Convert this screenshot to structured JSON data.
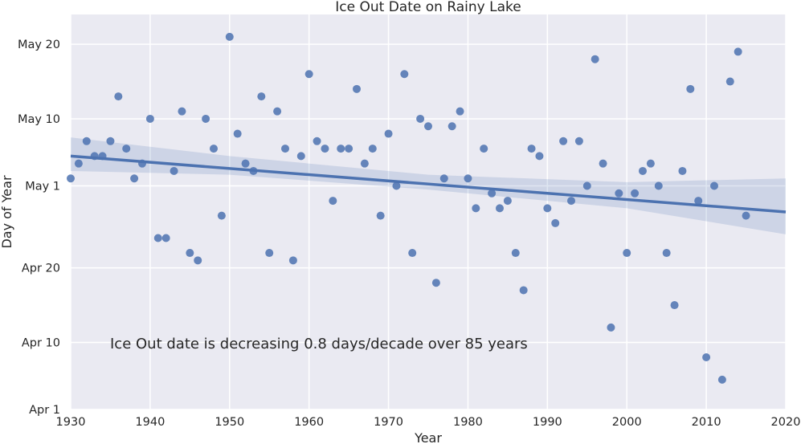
{
  "chart_data": {
    "type": "scatter",
    "title": "Ice Out Date on Rainy Lake",
    "xlabel": "Year",
    "ylabel": "Day of Year",
    "xlim": [
      1930,
      2020
    ],
    "ylim": [
      "Apr 1",
      "May 24"
    ],
    "xticks": [
      1930,
      1940,
      1950,
      1960,
      1970,
      1980,
      1990,
      2000,
      2010,
      2020
    ],
    "yticks": [
      {
        "value": "Apr 1",
        "label": "Apr 1"
      },
      {
        "value": "Apr 10",
        "label": "Apr 10"
      },
      {
        "value": "Apr 20",
        "label": "Apr 20"
      },
      {
        "value": "May 1",
        "label": "May 1"
      },
      {
        "value": "May 10",
        "label": "May 10"
      },
      {
        "value": "May 20",
        "label": "May 20"
      }
    ],
    "grid": true,
    "annotation": "Ice Out date is decreasing 0.8 days/decade over 85 years",
    "trend_line": {
      "start": {
        "x": 1930,
        "y": "May 5"
      },
      "end": {
        "x": 2020,
        "y": "Apr 27.5"
      }
    },
    "confidence_band": [
      {
        "x": 1930,
        "upper": "May 7.5",
        "lower": "May 3"
      },
      {
        "x": 1950,
        "upper": "May 5",
        "lower": "May 2.5"
      },
      {
        "x": 1975,
        "upper": "May 2.5",
        "lower": "Apr 30.5"
      },
      {
        "x": 2000,
        "upper": "May 1.5",
        "lower": "Apr 28"
      },
      {
        "x": 2020,
        "upper": "May 2",
        "lower": "Apr 24.5"
      }
    ],
    "points": [
      {
        "x": 1930,
        "y": "May 2"
      },
      {
        "x": 1931,
        "y": "May 4"
      },
      {
        "x": 1932,
        "y": "May 7"
      },
      {
        "x": 1933,
        "y": "May 5"
      },
      {
        "x": 1934,
        "y": "May 5"
      },
      {
        "x": 1935,
        "y": "May 7"
      },
      {
        "x": 1936,
        "y": "May 13"
      },
      {
        "x": 1937,
        "y": "May 6"
      },
      {
        "x": 1938,
        "y": "May 2"
      },
      {
        "x": 1939,
        "y": "May 4"
      },
      {
        "x": 1940,
        "y": "May 10"
      },
      {
        "x": 1941,
        "y": "Apr 24"
      },
      {
        "x": 1942,
        "y": "Apr 24"
      },
      {
        "x": 1943,
        "y": "May 3"
      },
      {
        "x": 1944,
        "y": "May 11"
      },
      {
        "x": 1945,
        "y": "Apr 22"
      },
      {
        "x": 1946,
        "y": "Apr 21"
      },
      {
        "x": 1947,
        "y": "May 10"
      },
      {
        "x": 1948,
        "y": "May 6"
      },
      {
        "x": 1949,
        "y": "Apr 27"
      },
      {
        "x": 1950,
        "y": "May 21"
      },
      {
        "x": 1951,
        "y": "May 8"
      },
      {
        "x": 1952,
        "y": "May 4"
      },
      {
        "x": 1953,
        "y": "May 3"
      },
      {
        "x": 1954,
        "y": "May 13"
      },
      {
        "x": 1955,
        "y": "Apr 22"
      },
      {
        "x": 1956,
        "y": "May 11"
      },
      {
        "x": 1957,
        "y": "May 6"
      },
      {
        "x": 1958,
        "y": "Apr 21"
      },
      {
        "x": 1959,
        "y": "May 5"
      },
      {
        "x": 1960,
        "y": "May 16"
      },
      {
        "x": 1961,
        "y": "May 7"
      },
      {
        "x": 1962,
        "y": "May 6"
      },
      {
        "x": 1963,
        "y": "Apr 29"
      },
      {
        "x": 1964,
        "y": "May 6"
      },
      {
        "x": 1965,
        "y": "May 6"
      },
      {
        "x": 1966,
        "y": "May 14"
      },
      {
        "x": 1967,
        "y": "May 4"
      },
      {
        "x": 1968,
        "y": "May 6"
      },
      {
        "x": 1969,
        "y": "Apr 27"
      },
      {
        "x": 1970,
        "y": "May 8"
      },
      {
        "x": 1971,
        "y": "May 1"
      },
      {
        "x": 1972,
        "y": "May 16"
      },
      {
        "x": 1973,
        "y": "Apr 22"
      },
      {
        "x": 1974,
        "y": "May 10"
      },
      {
        "x": 1975,
        "y": "May 9"
      },
      {
        "x": 1976,
        "y": "Apr 18"
      },
      {
        "x": 1977,
        "y": "May 2"
      },
      {
        "x": 1978,
        "y": "May 9"
      },
      {
        "x": 1979,
        "y": "May 11"
      },
      {
        "x": 1980,
        "y": "May 2"
      },
      {
        "x": 1981,
        "y": "Apr 28"
      },
      {
        "x": 1982,
        "y": "May 6"
      },
      {
        "x": 1983,
        "y": "Apr 30"
      },
      {
        "x": 1984,
        "y": "Apr 28"
      },
      {
        "x": 1985,
        "y": "Apr 29"
      },
      {
        "x": 1986,
        "y": "Apr 22"
      },
      {
        "x": 1987,
        "y": "Apr 17"
      },
      {
        "x": 1988,
        "y": "May 6"
      },
      {
        "x": 1989,
        "y": "May 5"
      },
      {
        "x": 1990,
        "y": "Apr 28"
      },
      {
        "x": 1991,
        "y": "Apr 26"
      },
      {
        "x": 1992,
        "y": "May 7"
      },
      {
        "x": 1993,
        "y": "Apr 29"
      },
      {
        "x": 1994,
        "y": "May 7"
      },
      {
        "x": 1995,
        "y": "May 1"
      },
      {
        "x": 1996,
        "y": "May 18"
      },
      {
        "x": 1997,
        "y": "May 4"
      },
      {
        "x": 1998,
        "y": "Apr 12"
      },
      {
        "x": 1999,
        "y": "Apr 30"
      },
      {
        "x": 2000,
        "y": "Apr 22"
      },
      {
        "x": 2001,
        "y": "Apr 30"
      },
      {
        "x": 2002,
        "y": "May 3"
      },
      {
        "x": 2003,
        "y": "May 4"
      },
      {
        "x": 2004,
        "y": "May 1"
      },
      {
        "x": 2005,
        "y": "Apr 22"
      },
      {
        "x": 2006,
        "y": "Apr 15"
      },
      {
        "x": 2007,
        "y": "May 3"
      },
      {
        "x": 2008,
        "y": "May 14"
      },
      {
        "x": 2009,
        "y": "Apr 29"
      },
      {
        "x": 2010,
        "y": "Apr 8"
      },
      {
        "x": 2011,
        "y": "May 1"
      },
      {
        "x": 2012,
        "y": "Apr 5"
      },
      {
        "x": 2013,
        "y": "May 15"
      },
      {
        "x": 2014,
        "y": "May 19"
      },
      {
        "x": 2015,
        "y": "Apr 27"
      }
    ]
  },
  "colors": {
    "background": "#ffffff",
    "plot_background": "#eaeaf2",
    "grid": "#ffffff",
    "points": "#4c72b0",
    "trend_line": "#4c72b0",
    "band": "#4c72b0",
    "text": "#262626"
  }
}
